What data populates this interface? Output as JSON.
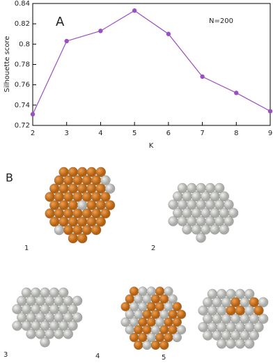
{
  "chart_data": {
    "type": "line",
    "panel_label": "A",
    "annotation": "N=200",
    "x_label": "K",
    "y_label": "Silhouette score",
    "x": [
      2,
      3,
      4,
      5,
      6,
      7,
      8,
      9
    ],
    "series": [
      {
        "color": "#9b4fc2",
        "values": [
          0.731,
          0.803,
          0.813,
          0.833,
          0.81,
          0.768,
          0.752,
          0.734
        ]
      }
    ],
    "xlim": [
      2,
      9
    ],
    "xticks": [
      2,
      3,
      4,
      5,
      6,
      7,
      8,
      9
    ],
    "ylim": [
      0.72,
      0.84
    ],
    "yticks": [
      0.72,
      0.74,
      0.76,
      0.78,
      0.8,
      0.82,
      0.84
    ]
  },
  "panel_b": {
    "label": "B",
    "items": [
      "1",
      "2",
      "3",
      "4",
      "5"
    ]
  }
}
